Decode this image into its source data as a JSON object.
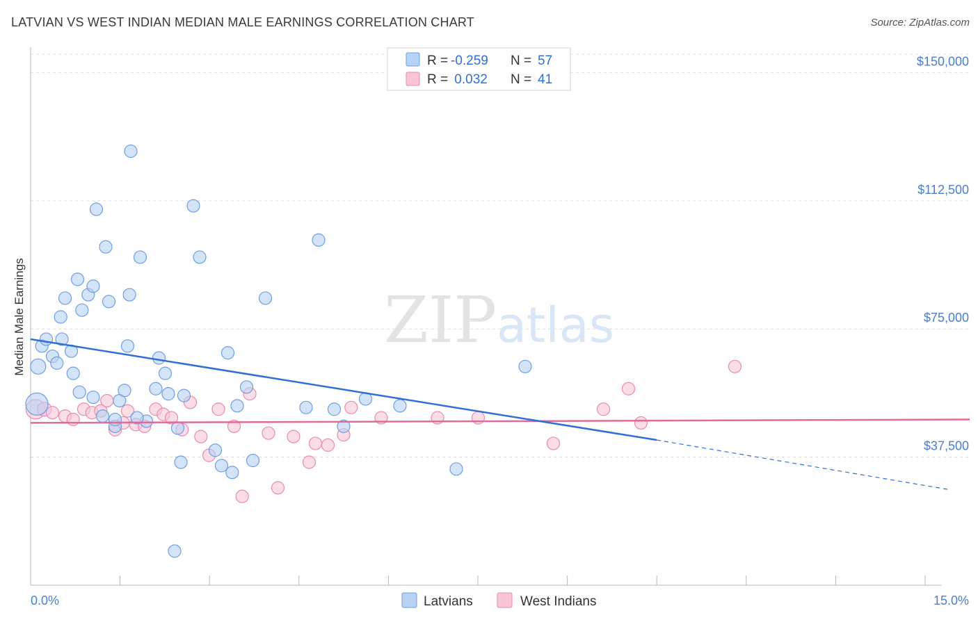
{
  "header": {
    "title": "LATVIAN VS WEST INDIAN MEDIAN MALE EARNINGS CORRELATION CHART",
    "source": "Source: ZipAtlas.com"
  },
  "watermark": {
    "part1": "ZIP",
    "part2": "atlas"
  },
  "legend": {
    "rows": [
      {
        "r_label": "R =",
        "r_value": "-0.259",
        "n_label": "N =",
        "n_value": "57"
      },
      {
        "r_label": "R =",
        "r_value": " 0.032",
        "n_label": "N =",
        "n_value": "41"
      }
    ]
  },
  "bottom_legend": {
    "series1": "Latvians",
    "series2": "West Indians"
  },
  "chart_data": {
    "type": "scatter",
    "title": "LATVIAN VS WEST INDIAN MEDIAN MALE EARNINGS CORRELATION CHART",
    "xlabel": "",
    "ylabel": "Median Male Earnings",
    "xlim": [
      0,
      15
    ],
    "ylim": [
      0,
      157000
    ],
    "x_tick_labels": [
      "0.0%",
      "15.0%"
    ],
    "y_ticks": [
      {
        "value": 37500,
        "label": "$37,500"
      },
      {
        "value": 75000,
        "label": "$75,000"
      },
      {
        "value": 112500,
        "label": "$112,500"
      },
      {
        "value": 150000,
        "label": "$150,000"
      }
    ],
    "colors": {
      "latvians_fill": "#b7d2f4",
      "latvians_stroke": "#6d9fe0",
      "latvians_line": "#2f6fd6",
      "westindians_fill": "#f8c6d8",
      "westindians_stroke": "#e98aae",
      "westindians_line": "#e06b98"
    },
    "series": [
      {
        "name": "Latvians",
        "r": -0.259,
        "n": 57,
        "trend": {
          "x0": 0,
          "y0": 72000,
          "x1": 10.0,
          "y1": 42500,
          "dash_to_x": 15,
          "dash_to_y": 28000
        },
        "points": [
          [
            0.1,
            53000,
            16
          ],
          [
            0.12,
            64000,
            11
          ],
          [
            0.18,
            70000,
            9
          ],
          [
            0.25,
            72000,
            9
          ],
          [
            0.35,
            67000,
            9
          ],
          [
            0.48,
            78500,
            9
          ],
          [
            0.5,
            72000,
            9
          ],
          [
            0.42,
            65000,
            9
          ],
          [
            0.55,
            84000,
            9
          ],
          [
            0.75,
            89500,
            9
          ],
          [
            0.82,
            80500,
            9
          ],
          [
            0.65,
            68500,
            9
          ],
          [
            0.78,
            56500,
            9
          ],
          [
            0.92,
            85000,
            9
          ],
          [
            1.0,
            87500,
            9
          ],
          [
            1.05,
            110000,
            9
          ],
          [
            1.15,
            49500,
            9
          ],
          [
            1.2,
            99000,
            9
          ],
          [
            1.25,
            83000,
            9
          ],
          [
            1.35,
            46500,
            9
          ],
          [
            1.42,
            54000,
            9
          ],
          [
            1.5,
            57000,
            9
          ],
          [
            1.55,
            70000,
            9
          ],
          [
            1.6,
            127000,
            9
          ],
          [
            1.58,
            85000,
            9
          ],
          [
            1.75,
            96000,
            9
          ],
          [
            1.85,
            48000,
            9
          ],
          [
            2.0,
            57500,
            9
          ],
          [
            2.05,
            66500,
            9
          ],
          [
            2.15,
            62000,
            9
          ],
          [
            2.2,
            56000,
            9
          ],
          [
            2.35,
            46000,
            9
          ],
          [
            2.4,
            36000,
            9
          ],
          [
            2.6,
            111000,
            9
          ],
          [
            2.7,
            96000,
            9
          ],
          [
            2.95,
            39500,
            9
          ],
          [
            3.05,
            35000,
            9
          ],
          [
            3.15,
            68000,
            9
          ],
          [
            3.22,
            33000,
            9
          ],
          [
            3.3,
            52500,
            9
          ],
          [
            3.45,
            58000,
            9
          ],
          [
            3.55,
            36500,
            9
          ],
          [
            3.75,
            84000,
            9
          ],
          [
            4.4,
            52000,
            9
          ],
          [
            4.6,
            101000,
            9
          ],
          [
            4.85,
            51500,
            9
          ],
          [
            5.0,
            46500,
            9
          ],
          [
            5.35,
            54500,
            9
          ],
          [
            5.9,
            52500,
            9
          ],
          [
            6.8,
            34000,
            9
          ],
          [
            7.9,
            64000,
            9
          ],
          [
            0.68,
            62000,
            9
          ],
          [
            1.0,
            55000,
            9
          ],
          [
            1.35,
            48500,
            9
          ],
          [
            1.7,
            49000,
            9
          ],
          [
            2.45,
            55500,
            9
          ],
          [
            2.3,
            10000,
            9
          ]
        ]
      },
      {
        "name": "West Indians",
        "r": 0.032,
        "n": 41,
        "trend": {
          "x0": 0,
          "y0": 47500,
          "x1": 15,
          "y1": 48500
        },
        "points": [
          [
            0.08,
            51500,
            14
          ],
          [
            0.22,
            51500,
            10
          ],
          [
            0.35,
            50500,
            9
          ],
          [
            0.55,
            49500,
            9
          ],
          [
            0.68,
            48500,
            9
          ],
          [
            0.85,
            51500,
            9
          ],
          [
            0.98,
            50500,
            9
          ],
          [
            1.12,
            51000,
            9
          ],
          [
            1.22,
            54000,
            9
          ],
          [
            1.35,
            45500,
            9
          ],
          [
            1.48,
            47500,
            9
          ],
          [
            1.55,
            51000,
            9
          ],
          [
            1.68,
            47000,
            9
          ],
          [
            1.82,
            46500,
            9
          ],
          [
            2.0,
            51500,
            9
          ],
          [
            2.12,
            50000,
            9
          ],
          [
            2.25,
            49000,
            9
          ],
          [
            2.42,
            45500,
            9
          ],
          [
            2.55,
            53500,
            9
          ],
          [
            2.72,
            43500,
            9
          ],
          [
            2.85,
            38000,
            9
          ],
          [
            3.0,
            51500,
            9
          ],
          [
            3.25,
            46500,
            9
          ],
          [
            3.38,
            26000,
            9
          ],
          [
            3.5,
            56000,
            9
          ],
          [
            3.8,
            44500,
            9
          ],
          [
            3.95,
            28500,
            9
          ],
          [
            4.2,
            43500,
            9
          ],
          [
            4.45,
            36000,
            9
          ],
          [
            4.55,
            41500,
            9
          ],
          [
            4.75,
            41000,
            9
          ],
          [
            5.0,
            44000,
            9
          ],
          [
            5.12,
            52000,
            9
          ],
          [
            5.6,
            49000,
            9
          ],
          [
            6.5,
            49000,
            9
          ],
          [
            7.15,
            49000,
            9
          ],
          [
            8.35,
            41500,
            9
          ],
          [
            9.15,
            51500,
            9
          ],
          [
            9.55,
            57500,
            9
          ],
          [
            9.75,
            47500,
            9
          ],
          [
            11.25,
            64000,
            9
          ]
        ]
      }
    ]
  }
}
